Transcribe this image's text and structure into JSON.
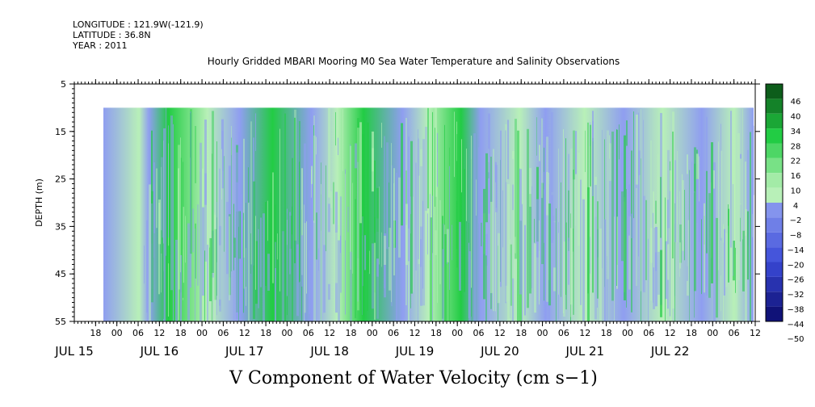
{
  "meta": {
    "longitude": "LONGITUDE : 121.9W(-121.9)",
    "latitude": "LATITUDE : 36.8N",
    "year": "YEAR : 2011"
  },
  "chart_data": {
    "type": "heatmap",
    "title": "Hourly Gridded MBARI Mooring M0 Sea Water Temperature and Salinity Observations",
    "xlabel": "V Component of Water Velocity (cm s−1)",
    "ylabel": "DEPTH (m)",
    "y_ticks": [
      5,
      15,
      25,
      35,
      45,
      55
    ],
    "ylim": [
      5,
      55
    ],
    "y_inverted": true,
    "data_depth_range": [
      10,
      55
    ],
    "x_hour_ticks": [
      "18",
      "00",
      "06",
      "12",
      "18",
      "00",
      "06",
      "12",
      "18",
      "00",
      "06",
      "12",
      "18",
      "00",
      "06",
      "12",
      "18",
      "00",
      "06",
      "12",
      "18",
      "00",
      "06",
      "12",
      "18",
      "00",
      "06",
      "12",
      "18",
      "00",
      "06",
      "12"
    ],
    "x_day_labels": [
      "JUL 15",
      "JUL 16",
      "JUL 17",
      "JUL 18",
      "JUL 19",
      "JUL 20",
      "JUL 21",
      "JUL 22"
    ],
    "colorbar": {
      "levels": [
        46,
        40,
        34,
        28,
        22,
        16,
        10,
        4,
        -2,
        -8,
        -14,
        -20,
        -26,
        -32,
        -38,
        -44,
        -50
      ],
      "labels": [
        "46",
        "40",
        "34",
        "28",
        "22",
        "16",
        "10",
        "4",
        "−2",
        "−8",
        "−14",
        "−20",
        "−26",
        "−32",
        "−38",
        "−44",
        "−50"
      ],
      "positive_color": "#22cc44",
      "near_zero_color": "#b8f0b8",
      "negative_color": "#8f9ef0",
      "max_color": "#0a4a14",
      "min_color": "#0a0a6a"
    }
  }
}
